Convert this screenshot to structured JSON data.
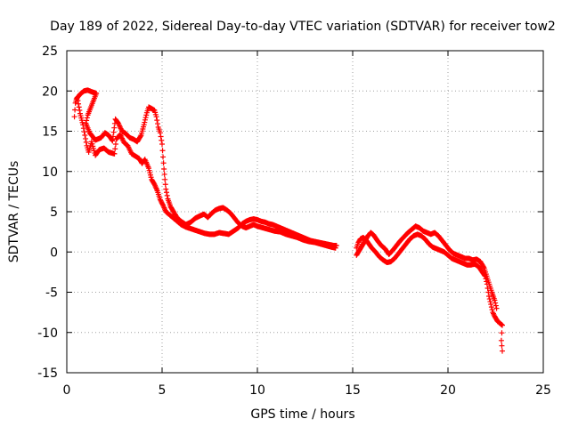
{
  "chart_data": {
    "type": "scatter",
    "title": "Day 189 of 2022, Sidereal Day-to-day VTEC variation (SDTVAR) for receiver tow2",
    "xlabel": "GPS time / hours",
    "ylabel": "SDTVAR / TECUs",
    "xlim": [
      0,
      25
    ],
    "ylim": [
      -15,
      25
    ],
    "xticks": [
      0,
      5,
      10,
      15,
      20,
      25
    ],
    "yticks": [
      -15,
      -10,
      -5,
      0,
      5,
      10,
      15,
      20,
      25
    ],
    "grid": true,
    "marker": "+",
    "series": [
      {
        "name": "SDTVAR",
        "color": "#ff0000",
        "trace": [
          [
            0.4,
            16.8
          ],
          [
            0.45,
            18.5
          ],
          [
            0.55,
            19.2
          ],
          [
            0.7,
            17.2
          ],
          [
            0.85,
            15.8
          ],
          [
            0.95,
            14.5
          ],
          [
            1.05,
            13.2
          ],
          [
            1.15,
            12.4
          ],
          [
            1.3,
            13.7
          ],
          [
            1.5,
            12.0
          ],
          [
            1.7,
            12.7
          ],
          [
            1.95,
            12.9
          ],
          [
            2.2,
            12.4
          ],
          [
            2.5,
            12.2
          ],
          [
            2.6,
            14.0
          ],
          [
            2.8,
            14.6
          ],
          [
            3.0,
            13.6
          ],
          [
            3.2,
            13.2
          ],
          [
            3.4,
            12.2
          ],
          [
            3.6,
            11.9
          ],
          [
            3.8,
            11.6
          ],
          [
            3.95,
            11.0
          ],
          [
            4.1,
            11.5
          ],
          [
            4.3,
            10.4
          ],
          [
            4.45,
            9.0
          ],
          [
            4.6,
            8.4
          ],
          [
            4.75,
            7.6
          ],
          [
            4.9,
            6.5
          ],
          [
            5.05,
            5.8
          ],
          [
            5.2,
            5.0
          ],
          [
            5.4,
            4.6
          ],
          [
            5.6,
            4.2
          ],
          [
            5.8,
            3.8
          ],
          [
            6.0,
            3.4
          ],
          [
            6.25,
            3.1
          ],
          [
            6.5,
            2.9
          ],
          [
            6.75,
            2.7
          ],
          [
            7.0,
            2.5
          ],
          [
            7.25,
            2.3
          ],
          [
            7.5,
            2.2
          ],
          [
            7.75,
            2.2
          ],
          [
            8.0,
            2.4
          ],
          [
            8.25,
            2.3
          ],
          [
            8.5,
            2.2
          ],
          [
            8.75,
            2.6
          ],
          [
            9.0,
            3.0
          ],
          [
            9.2,
            3.5
          ],
          [
            9.4,
            3.8
          ],
          [
            9.6,
            4.0
          ],
          [
            9.8,
            4.1
          ],
          [
            10.0,
            4.0
          ],
          [
            10.2,
            3.8
          ],
          [
            10.4,
            3.7
          ],
          [
            10.6,
            3.5
          ],
          [
            10.8,
            3.4
          ],
          [
            11.0,
            3.2
          ],
          [
            11.2,
            3.0
          ],
          [
            11.4,
            2.8
          ],
          [
            11.6,
            2.6
          ],
          [
            11.8,
            2.4
          ],
          [
            12.0,
            2.2
          ],
          [
            12.2,
            2.0
          ],
          [
            12.4,
            1.8
          ],
          [
            12.6,
            1.6
          ],
          [
            12.8,
            1.4
          ],
          [
            13.0,
            1.3
          ],
          [
            13.2,
            1.2
          ],
          [
            13.4,
            1.1
          ],
          [
            13.6,
            1.0
          ],
          [
            13.8,
            0.9
          ],
          [
            14.0,
            0.8
          ],
          [
            14.15,
            0.8
          ]
        ],
        "trace2": [
          [
            0.5,
            19.0
          ],
          [
            0.7,
            19.6
          ],
          [
            0.9,
            20.0
          ],
          [
            1.1,
            20.1
          ],
          [
            1.3,
            19.9
          ],
          [
            1.55,
            19.7
          ],
          [
            1.1,
            17.0
          ],
          [
            1.0,
            16.0
          ],
          [
            1.2,
            14.8
          ],
          [
            1.5,
            13.9
          ],
          [
            1.8,
            14.2
          ],
          [
            2.0,
            14.8
          ],
          [
            2.2,
            14.5
          ],
          [
            2.4,
            13.8
          ],
          [
            2.55,
            16.5
          ],
          [
            2.7,
            16.0
          ],
          [
            2.9,
            15.0
          ],
          [
            3.1,
            14.7
          ],
          [
            3.3,
            14.2
          ],
          [
            3.5,
            14.0
          ],
          [
            3.7,
            13.7
          ],
          [
            3.9,
            14.5
          ],
          [
            4.05,
            15.8
          ],
          [
            4.2,
            17.3
          ],
          [
            4.3,
            18.0
          ],
          [
            4.45,
            17.8
          ],
          [
            4.6,
            17.6
          ],
          [
            4.7,
            16.8
          ],
          [
            4.8,
            15.5
          ],
          [
            4.9,
            14.8
          ],
          [
            5.0,
            13.4
          ],
          [
            5.05,
            11.8
          ],
          [
            5.1,
            10.3
          ],
          [
            5.15,
            9.0
          ],
          [
            5.2,
            7.8
          ],
          [
            5.3,
            6.6
          ],
          [
            5.45,
            5.6
          ],
          [
            5.6,
            5.0
          ],
          [
            5.8,
            4.2
          ],
          [
            6.0,
            3.8
          ],
          [
            6.25,
            3.4
          ],
          [
            6.5,
            3.7
          ],
          [
            6.75,
            4.2
          ],
          [
            7.0,
            4.5
          ],
          [
            7.2,
            4.7
          ],
          [
            7.4,
            4.3
          ],
          [
            7.6,
            4.8
          ],
          [
            7.8,
            5.2
          ],
          [
            8.0,
            5.4
          ],
          [
            8.2,
            5.5
          ],
          [
            8.4,
            5.2
          ],
          [
            8.6,
            4.8
          ],
          [
            8.8,
            4.2
          ],
          [
            9.0,
            3.6
          ],
          [
            9.2,
            3.2
          ],
          [
            9.4,
            3.0
          ],
          [
            9.6,
            3.2
          ],
          [
            9.8,
            3.4
          ],
          [
            10.0,
            3.2
          ],
          [
            10.3,
            3.0
          ],
          [
            10.6,
            2.8
          ],
          [
            10.9,
            2.6
          ],
          [
            11.2,
            2.5
          ],
          [
            11.5,
            2.2
          ],
          [
            11.8,
            2.0
          ],
          [
            12.1,
            1.8
          ],
          [
            12.4,
            1.5
          ],
          [
            12.7,
            1.3
          ],
          [
            13.0,
            1.2
          ],
          [
            13.3,
            1.0
          ],
          [
            13.6,
            0.8
          ],
          [
            13.9,
            0.6
          ],
          [
            14.1,
            0.5
          ]
        ],
        "trace3": [
          [
            15.2,
            0.5
          ],
          [
            15.3,
            1.2
          ],
          [
            15.4,
            1.6
          ],
          [
            15.55,
            1.8
          ],
          [
            15.7,
            1.5
          ],
          [
            15.85,
            1.0
          ],
          [
            16.0,
            0.5
          ],
          [
            16.2,
            0.0
          ],
          [
            16.4,
            -0.6
          ],
          [
            16.6,
            -1.0
          ],
          [
            16.8,
            -1.3
          ],
          [
            17.0,
            -1.2
          ],
          [
            17.2,
            -0.8
          ],
          [
            17.4,
            -0.2
          ],
          [
            17.6,
            0.4
          ],
          [
            17.8,
            1.0
          ],
          [
            18.0,
            1.6
          ],
          [
            18.2,
            2.0
          ],
          [
            18.4,
            2.2
          ],
          [
            18.6,
            2.0
          ],
          [
            18.8,
            1.6
          ],
          [
            19.0,
            1.0
          ],
          [
            19.2,
            0.6
          ],
          [
            19.4,
            0.4
          ],
          [
            19.6,
            0.2
          ],
          [
            19.8,
            0.0
          ],
          [
            20.0,
            -0.4
          ],
          [
            20.2,
            -0.8
          ],
          [
            20.4,
            -1.0
          ],
          [
            20.6,
            -1.2
          ],
          [
            20.8,
            -1.4
          ],
          [
            21.0,
            -1.6
          ],
          [
            21.2,
            -1.6
          ],
          [
            21.4,
            -1.5
          ],
          [
            21.6,
            -1.8
          ],
          [
            21.8,
            -2.5
          ],
          [
            21.95,
            -3.0
          ],
          [
            22.05,
            -4.0
          ],
          [
            22.15,
            -5.5
          ],
          [
            22.25,
            -6.5
          ],
          [
            22.35,
            -7.5
          ],
          [
            22.45,
            -8.0
          ],
          [
            22.6,
            -8.6
          ],
          [
            22.75,
            -8.9
          ],
          [
            22.85,
            -9.1
          ],
          [
            22.8,
            -11.0
          ],
          [
            22.85,
            -12.3
          ]
        ],
        "trace4": [
          [
            15.2,
            -0.4
          ],
          [
            15.35,
            0.2
          ],
          [
            15.5,
            0.8
          ],
          [
            15.65,
            1.4
          ],
          [
            15.8,
            2.0
          ],
          [
            15.95,
            2.4
          ],
          [
            16.1,
            2.1
          ],
          [
            16.3,
            1.4
          ],
          [
            16.5,
            0.8
          ],
          [
            16.7,
            0.4
          ],
          [
            16.9,
            -0.3
          ],
          [
            17.1,
            0.2
          ],
          [
            17.3,
            0.8
          ],
          [
            17.5,
            1.4
          ],
          [
            17.7,
            1.9
          ],
          [
            17.9,
            2.4
          ],
          [
            18.1,
            2.8
          ],
          [
            18.3,
            3.2
          ],
          [
            18.5,
            3.0
          ],
          [
            18.7,
            2.6
          ],
          [
            18.9,
            2.4
          ],
          [
            19.1,
            2.2
          ],
          [
            19.3,
            2.4
          ],
          [
            19.5,
            2.0
          ],
          [
            19.7,
            1.4
          ],
          [
            19.9,
            0.8
          ],
          [
            20.1,
            0.2
          ],
          [
            20.3,
            -0.2
          ],
          [
            20.5,
            -0.4
          ],
          [
            20.7,
            -0.6
          ],
          [
            20.9,
            -0.8
          ],
          [
            21.1,
            -0.8
          ],
          [
            21.3,
            -1.0
          ],
          [
            21.5,
            -0.9
          ],
          [
            21.7,
            -1.2
          ],
          [
            21.9,
            -2.0
          ],
          [
            22.1,
            -3.5
          ],
          [
            22.3,
            -5.0
          ],
          [
            22.45,
            -6.0
          ],
          [
            22.55,
            -7.0
          ]
        ]
      }
    ]
  }
}
